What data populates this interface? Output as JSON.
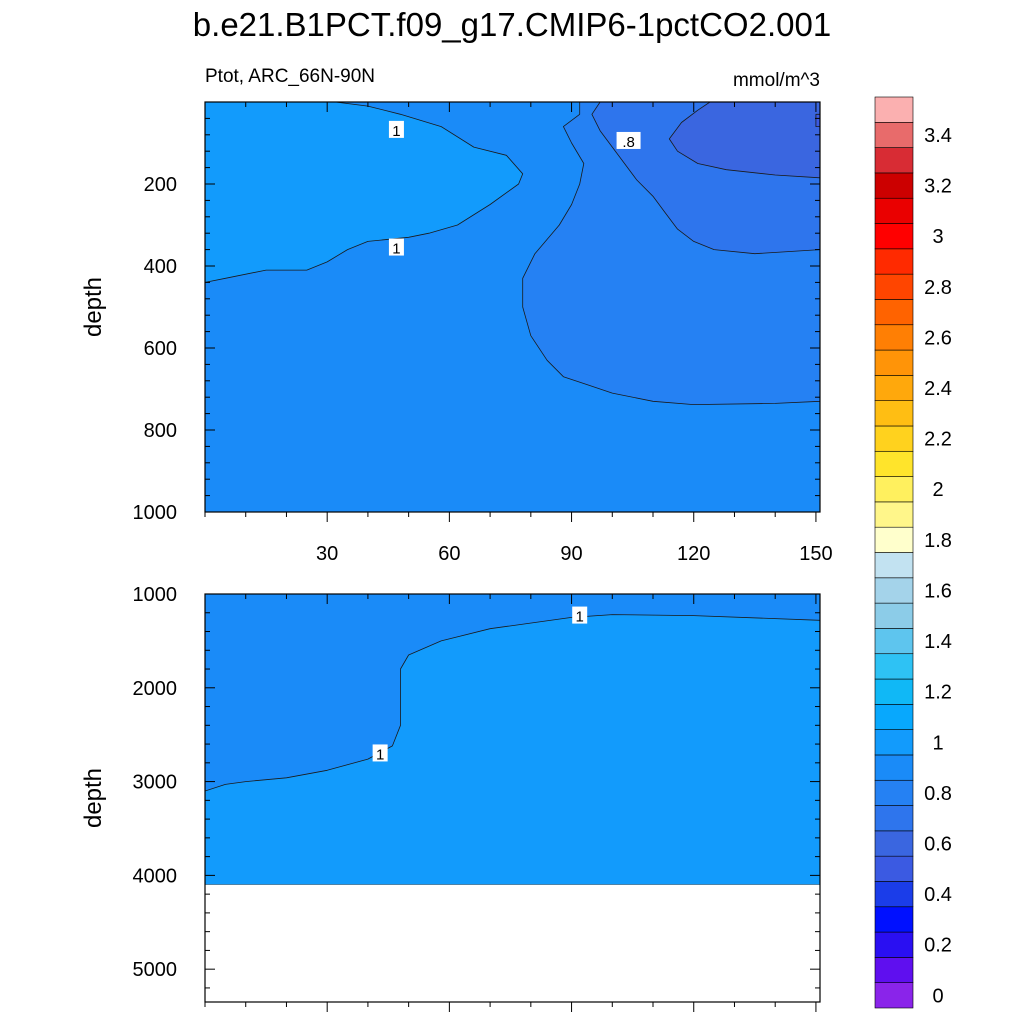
{
  "chart_data": {
    "title": "b.e21.B1PCT.f09_g17.CMIP6-1pctCO2.001",
    "left_string": "Ptot, ARC_66N-90N",
    "right_string": "mmol/m^3",
    "type": "contour",
    "panels": [
      {
        "id": "upper",
        "ylabel": "depth",
        "y_range": [
          0,
          1000
        ],
        "y_reversed": true,
        "y_ticks": [
          200,
          400,
          600,
          800,
          1000
        ],
        "x_range": [
          0,
          151
        ],
        "x_ticks": [
          30,
          60,
          90,
          120,
          150
        ],
        "x_tick_labels_shown": true,
        "background_value": 0.95,
        "filled_regions": [
          {
            "value": 1.05,
            "points": [
              [
                0,
                0
              ],
              [
                32,
                0
              ],
              [
                40,
                10
              ],
              [
                48,
                30
              ],
              [
                58,
                60
              ],
              [
                66,
                110
              ],
              [
                74,
                130
              ],
              [
                78,
                175
              ],
              [
                77,
                200
              ],
              [
                70,
                250
              ],
              [
                62,
                300
              ],
              [
                55,
                320
              ],
              [
                50,
                330
              ],
              [
                40,
                340
              ],
              [
                35,
                360
              ],
              [
                30,
                390
              ],
              [
                25,
                410
              ],
              [
                15,
                410
              ],
              [
                5,
                430
              ],
              [
                0,
                440
              ]
            ]
          },
          {
            "value": 0.85,
            "points": [
              [
                92,
                0
              ],
              [
                151,
                0
              ],
              [
                151,
                730
              ],
              [
                140,
                735
              ],
              [
                120,
                738
              ],
              [
                110,
                730
              ],
              [
                100,
                710
              ],
              [
                94,
                690
              ],
              [
                88,
                670
              ],
              [
                84,
                630
              ],
              [
                80,
                570
              ],
              [
                78,
                500
              ],
              [
                78,
                430
              ],
              [
                81,
                370
              ],
              [
                87,
                300
              ],
              [
                90,
                250
              ],
              [
                92,
                200
              ],
              [
                93,
                150
              ],
              [
                90,
                100
              ],
              [
                88,
                60
              ],
              [
                92,
                30
              ]
            ]
          },
          {
            "value": 0.75,
            "points": [
              [
                97,
                0
              ],
              [
                151,
                0
              ],
              [
                151,
                360
              ],
              [
                135,
                370
              ],
              [
                125,
                360
              ],
              [
                120,
                340
              ],
              [
                116,
                310
              ],
              [
                113,
                270
              ],
              [
                110,
                230
              ],
              [
                106,
                190
              ],
              [
                103,
                150
              ],
              [
                100,
                110
              ],
              [
                97,
                70
              ],
              [
                95,
                30
              ]
            ]
          },
          {
            "value": 0.65,
            "points": [
              [
                124,
                0
              ],
              [
                151,
                0
              ],
              [
                151,
                185
              ],
              [
                140,
                178
              ],
              [
                128,
                165
              ],
              [
                121,
                150
              ],
              [
                116,
                120
              ],
              [
                114,
                90
              ],
              [
                117,
                50
              ],
              [
                121,
                20
              ]
            ]
          },
          {
            "value": 0.55,
            "points": [
              [
                150,
                30
              ],
              [
                151,
                30
              ],
              [
                151,
                60
              ],
              [
                150,
                60
              ]
            ]
          }
        ],
        "contour_labels": [
          {
            "text": "1",
            "x": 47,
            "y": 68
          },
          {
            "text": "1",
            "x": 47,
            "y": 355
          },
          {
            "text": ".8",
            "x": 104,
            "y": 95
          }
        ]
      },
      {
        "id": "lower",
        "ylabel": "depth",
        "y_range": [
          1000,
          5350
        ],
        "y_reversed": true,
        "y_ticks": [
          1000,
          2000,
          3000,
          4000,
          5000
        ],
        "x_range": [
          0,
          151
        ],
        "x_ticks": [
          30,
          60,
          90,
          120,
          150
        ],
        "x_tick_labels_shown": false,
        "background_value": 0.95,
        "filled_regions": [
          {
            "value": 1.05,
            "points": [
              [
                151,
                1280
              ],
              [
                120,
                1230
              ],
              [
                100,
                1220
              ],
              [
                90,
                1250
              ],
              [
                70,
                1370
              ],
              [
                58,
                1500
              ],
              [
                50,
                1650
              ],
              [
                48,
                1800
              ],
              [
                48,
                2000
              ],
              [
                48,
                2400
              ],
              [
                46,
                2620
              ],
              [
                40,
                2760
              ],
              [
                30,
                2880
              ],
              [
                20,
                2960
              ],
              [
                10,
                3000
              ],
              [
                5,
                3030
              ],
              [
                0,
                3100
              ],
              [
                0,
                4100
              ],
              [
                151,
                4100
              ]
            ]
          }
        ],
        "missing_below": 4100,
        "contour_labels": [
          {
            "text": "1",
            "x": 92,
            "y": 1230
          },
          {
            "text": "1",
            "x": 43,
            "y": 2700
          }
        ]
      }
    ],
    "colorbar": {
      "levels": [
        0,
        0.1,
        0.2,
        0.3,
        0.4,
        0.5,
        0.6,
        0.7,
        0.8,
        0.9,
        1,
        1.1,
        1.2,
        1.3,
        1.4,
        1.5,
        1.6,
        1.7,
        1.8,
        1.9,
        2,
        2.1,
        2.2,
        2.3,
        2.4,
        2.5,
        2.6,
        2.7,
        2.8,
        2.9,
        3,
        3.1,
        3.2,
        3.3,
        3.4,
        3.5
      ],
      "labels": [
        "0",
        "0.2",
        "0.4",
        "0.6",
        "0.8",
        "1",
        "1.2",
        "1.4",
        "1.6",
        "1.8",
        "2",
        "2.2",
        "2.4",
        "2.6",
        "2.8",
        "3",
        "3.2",
        "3.4"
      ],
      "label_values": [
        0,
        0.2,
        0.4,
        0.6,
        0.8,
        1,
        1.2,
        1.4,
        1.6,
        1.8,
        2,
        2.2,
        2.4,
        2.6,
        2.8,
        3,
        3.2,
        3.4
      ],
      "colors": [
        "#8a24ea",
        "#5f0fef",
        "#2a0ff2",
        "#0010ff",
        "#1b3de9",
        "#3b5ae2",
        "#3a66e0",
        "#2e75ed",
        "#2581f3",
        "#1a8bf8",
        "#129bfc",
        "#08a8fd",
        "#10b8f6",
        "#2ec2f4",
        "#5ec5ee",
        "#8ccce8",
        "#a4d3ea",
        "#c2e2f1",
        "#ffffcc",
        "#fff68a",
        "#fff05e",
        "#ffe42b",
        "#ffd21e",
        "#ffbe13",
        "#ffa80c",
        "#ff9408",
        "#ff7f04",
        "#ff6300",
        "#ff4500",
        "#ff2a00",
        "#ff0000",
        "#ea0000",
        "#cc0000",
        "#d82c34",
        "#e86b6b",
        "#fbb0b0"
      ]
    }
  }
}
